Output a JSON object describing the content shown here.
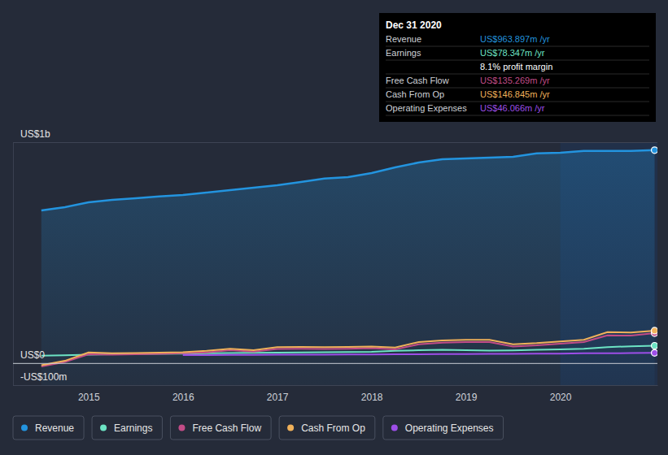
{
  "chart_data": {
    "type": "line",
    "x": [
      2014.5,
      2014.75,
      2015,
      2015.25,
      2015.5,
      2015.75,
      2016,
      2016.25,
      2016.5,
      2016.75,
      2017,
      2017.25,
      2017.5,
      2017.75,
      2018,
      2018.25,
      2018.5,
      2018.75,
      2019,
      2019.25,
      2019.5,
      2019.75,
      2020,
      2020.25,
      2020.5,
      2020.75,
      2021
    ],
    "xlim": [
      2014.2,
      2021.03
    ],
    "xticks": [
      2015,
      2016,
      2017,
      2018,
      2019,
      2020
    ],
    "ylim": [
      -100,
      1000
    ],
    "yticks": [
      {
        "value": 1000,
        "label": "US$1b"
      },
      {
        "value": 0,
        "label": "US$0"
      },
      {
        "value": -100,
        "label": "-US$100m"
      }
    ],
    "grid": true,
    "legend": "bottom",
    "series": [
      {
        "name": "Revenue",
        "color": "#2394df",
        "type": "area",
        "values": [
          691,
          706,
          728,
          739,
          746,
          754,
          761,
          772,
          783,
          794,
          805,
          820,
          835,
          842,
          860,
          886,
          908,
          923,
          926,
          930,
          934,
          949,
          952,
          960,
          960,
          960,
          963.897
        ]
      },
      {
        "name": "Earnings",
        "color": "#6ce3c4",
        "type": "line",
        "values": [
          33,
          35,
          38,
          40,
          41,
          42,
          43,
          44,
          45,
          46,
          47,
          48,
          49,
          50,
          51,
          55,
          58,
          60,
          58,
          56,
          57,
          60,
          62,
          65,
          72,
          76,
          78.347
        ]
      },
      {
        "name": "Free Cash Flow",
        "color": "#c24c87",
        "type": "line",
        "values": [
          -15,
          5,
          40,
          38,
          40,
          42,
          44,
          48,
          58,
          52,
          64,
          65,
          64,
          65,
          67,
          62,
          85,
          92,
          95,
          95,
          75,
          80,
          88,
          95,
          125,
          124,
          135.269
        ]
      },
      {
        "name": "Cash From Op",
        "color": "#f0b15a",
        "type": "line",
        "values": [
          -10,
          10,
          48,
          44,
          45,
          47,
          49,
          55,
          65,
          58,
          72,
          73,
          72,
          73,
          75,
          70,
          95,
          102,
          105,
          105,
          85,
          90,
          98,
          105,
          140,
          138,
          146.845
        ]
      },
      {
        "name": "Operating Expenses",
        "color": "#9d4ee8",
        "type": "line",
        "values": [
          null,
          null,
          null,
          null,
          null,
          null,
          36,
          36,
          37,
          37,
          38,
          38,
          38,
          39,
          39,
          40,
          40,
          41,
          41,
          42,
          42,
          43,
          43,
          44,
          44,
          45,
          46.066
        ]
      }
    ],
    "annotation": {
      "title": "Dec 31 2020",
      "rows": [
        {
          "label": "Revenue",
          "value": "US$963.897m /yr"
        },
        {
          "label": "Earnings",
          "value": "US$78.347m /yr"
        },
        {
          "value": "8.1% profit margin"
        },
        {
          "label": "Free Cash Flow",
          "value": "US$135.269m /yr"
        },
        {
          "label": "Cash From Op",
          "value": "US$146.845m /yr"
        },
        {
          "label": "Operating Expenses",
          "value": "US$46.066m /yr"
        }
      ]
    }
  }
}
